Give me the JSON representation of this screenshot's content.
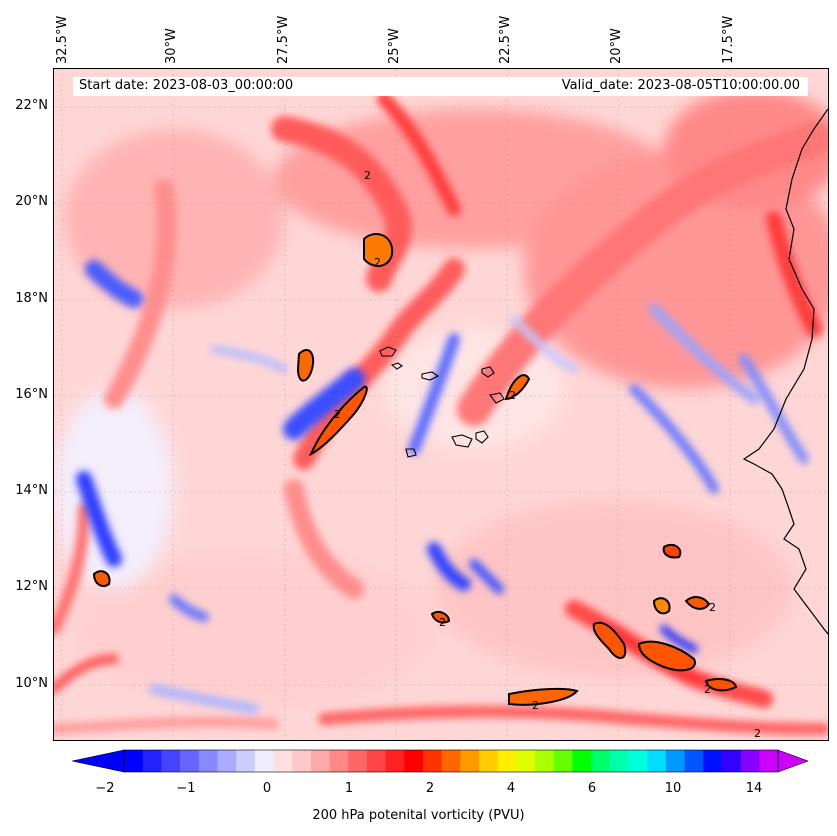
{
  "header": {
    "start_date": "Start date: 2023-08-03_00:00:00",
    "valid_date": "Valid_date: 2023-08-05T10:00:00.00"
  },
  "axes": {
    "lon_labels": [
      "32.5°W",
      "30°W",
      "27.5°W",
      "25°W",
      "22.5°W",
      "20°W",
      "17.5°W"
    ],
    "lat_labels": [
      "22°N",
      "20°N",
      "18°N",
      "16°N",
      "14°N",
      "12°N",
      "10°N"
    ]
  },
  "map": {
    "variable": "200 hPa potential vorticity",
    "contour_label": "2",
    "extent": {
      "lon_min": -32.6,
      "lon_max": -15.4,
      "lat_min": 8.9,
      "lat_max": 22.8
    }
  },
  "colorbar": {
    "label": "200 hPa potenital vorticity (PVU)",
    "tick_labels": [
      "−2",
      "−1",
      "0",
      "1",
      "2",
      "4",
      "6",
      "10",
      "14"
    ],
    "colors": [
      "#0000ff",
      "#2222ff",
      "#4444ff",
      "#6666ff",
      "#8888ff",
      "#aaaaff",
      "#ccccff",
      "#eeeeff",
      "#ffe0e0",
      "#ffc8c8",
      "#ffaaaa",
      "#ff8888",
      "#ff6666",
      "#ff4444",
      "#ff2222",
      "#ff0000",
      "#ff3300",
      "#ff6600",
      "#ff9900",
      "#ffcc00",
      "#ffee00",
      "#ddff00",
      "#aaff00",
      "#66ff00",
      "#00ff00",
      "#00ff66",
      "#00ffaa",
      "#00ffdd",
      "#00ddff",
      "#0099ff",
      "#0055ff",
      "#0011ff",
      "#3300ff",
      "#8800ff",
      "#cc00ff"
    ]
  }
}
